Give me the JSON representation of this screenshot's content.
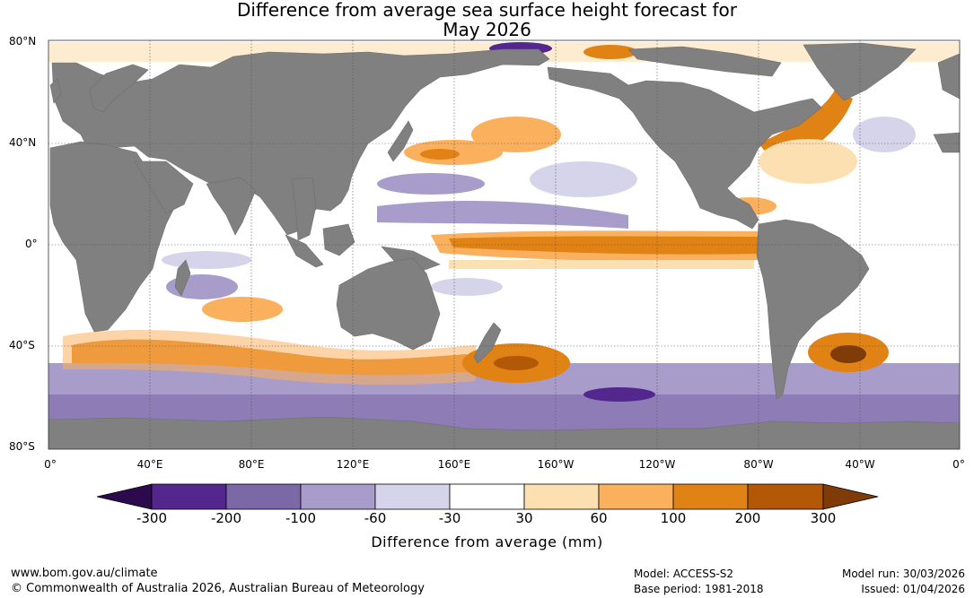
{
  "title": {
    "line1": "Difference from average sea surface height forecast for",
    "line2": "May 2026"
  },
  "map": {
    "land_color": "#808080",
    "ocean_background": "#ffffff",
    "lat_labels": [
      "80°N",
      "40°N",
      "0°",
      "40°S",
      "80°S"
    ],
    "lon_labels": [
      "0°",
      "40°E",
      "80°E",
      "120°E",
      "160°E",
      "160°W",
      "120°W",
      "80°W",
      "40°W",
      "0°"
    ]
  },
  "colorbar": {
    "title": "Difference from average (mm)",
    "tick_labels": [
      "-300",
      "-200",
      "-100",
      "-60",
      "-30",
      "30",
      "60",
      "100",
      "200",
      "300"
    ],
    "colors": [
      "#2d0a4e",
      "#54278f",
      "#7b68a6",
      "#a89cca",
      "#d6d4ea",
      "#ffffff",
      "#fde0b2",
      "#fbb05e",
      "#e08214",
      "#b35806",
      "#7f3b08"
    ]
  },
  "footer": {
    "website": "www.bom.gov.au/climate",
    "copyright": "© Commonwealth of Australia 2026, Australian Bureau of Meteorology",
    "model": "Model: ACCESS-S2",
    "base_period": "Base period: 1981-2018",
    "model_run": "Model run: 30/03/2026",
    "issued": "Issued: 01/04/2026"
  }
}
